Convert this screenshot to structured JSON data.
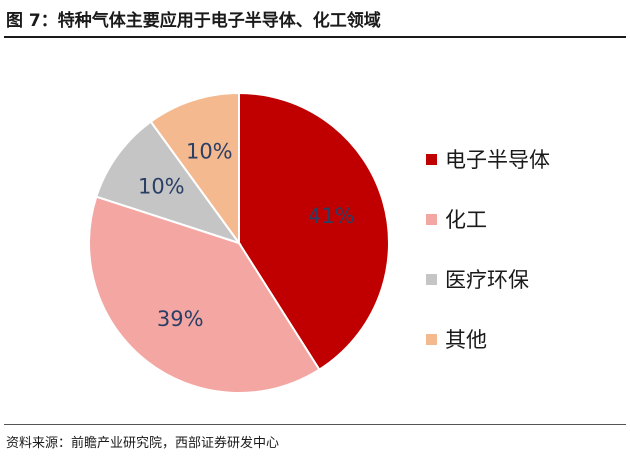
{
  "header": {
    "title": "图 7：特种气体主要应用于电子半导体、化工领域"
  },
  "footer": {
    "source": "资料来源：前瞻产业研究院，西部证券研发中心"
  },
  "chart_data": {
    "type": "pie",
    "title": "图 7：特种气体主要应用于电子半导体、化工领域",
    "categories": [
      "电子半导体",
      "化工",
      "医疗环保",
      "其他"
    ],
    "values": [
      41,
      39,
      10,
      10
    ],
    "labels": [
      "41%",
      "39%",
      "10%",
      "10%"
    ],
    "colors": [
      "#C00000",
      "#F4A6A3",
      "#C5C5C5",
      "#F4B98E"
    ],
    "label_colors": [
      "#2a3f66",
      "#2a3f66",
      "#2a3f66",
      "#2a3f66"
    ],
    "legend_position": "right",
    "start": "12 o'clock",
    "direction": "clockwise"
  }
}
